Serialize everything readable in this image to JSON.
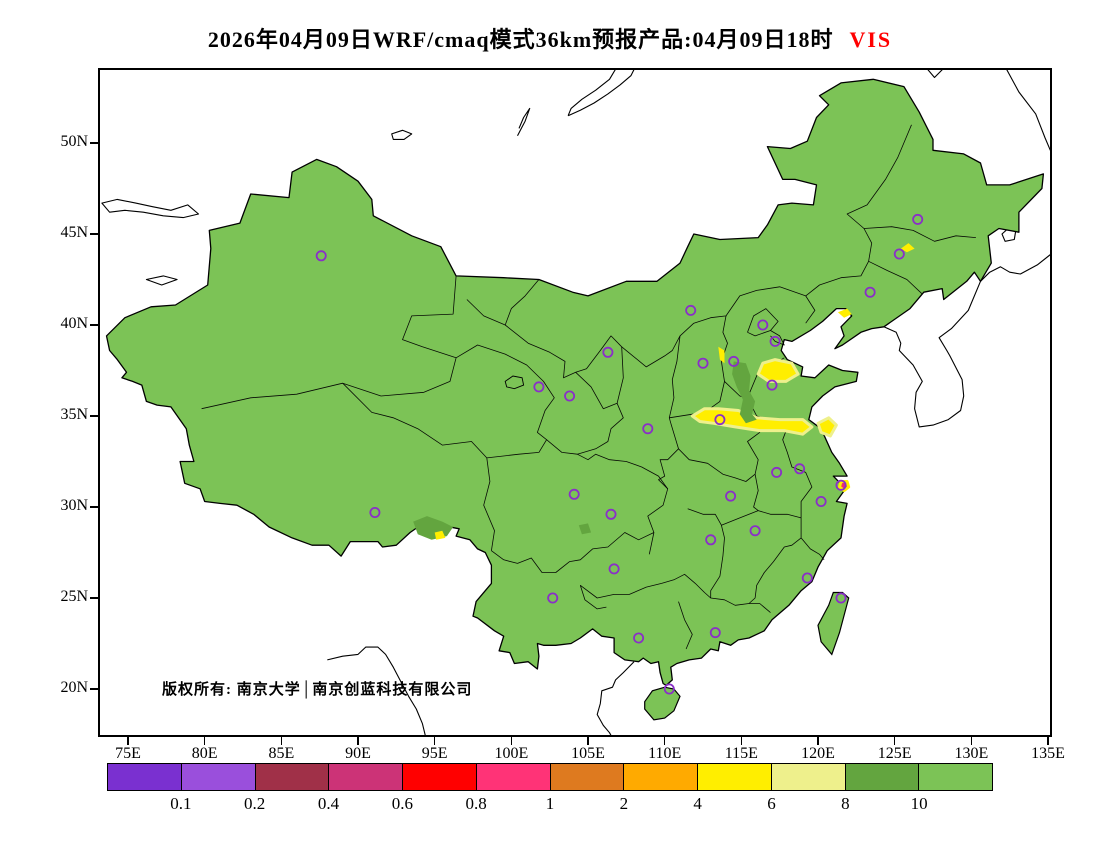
{
  "title": {
    "prefix": "2026年04月09日WRF/cmaq模式36km预报产品:04月09日18时",
    "variable": "VIS"
  },
  "copyright": "版权所有: 南京大学│南京创蓝科技有限公司",
  "axes": {
    "lat_tick_labels": [
      "50N",
      "45N",
      "40N",
      "35N",
      "30N",
      "25N",
      "20N"
    ],
    "lat_tick_values": [
      50,
      45,
      40,
      35,
      30,
      25,
      20
    ],
    "lon_tick_labels": [
      "75E",
      "80E",
      "85E",
      "90E",
      "95E",
      "100E",
      "105E",
      "110E",
      "115E",
      "120E",
      "125E",
      "130E",
      "135E"
    ],
    "lon_tick_values": [
      75,
      80,
      85,
      90,
      95,
      100,
      105,
      110,
      115,
      120,
      125,
      130,
      135
    ]
  },
  "colors": {
    "map_fill": "#7cc356",
    "marker": "#8a2fc8",
    "title_variable": "#ff0000",
    "line": "#000000"
  },
  "chart_data": {
    "type": "heatmap",
    "title": "2026年04月09日WRF/cmaq模式36km预报产品:04月09日18时 VIS",
    "variable": "VIS",
    "lon_range": [
      73.2,
      135.1
    ],
    "lat_range": [
      17.5,
      54.0
    ],
    "background_level": ">10",
    "colorbar": {
      "boundary_labels": [
        "0.1",
        "0.2",
        "0.4",
        "0.6",
        "0.8",
        "1",
        "2",
        "4",
        "6",
        "8",
        "10"
      ],
      "segment_colors": [
        "#7a30d0",
        "#9a4fdc",
        "#a03048",
        "#cc3377",
        "#ff0000",
        "#ff3377",
        "#de7a1f",
        "#ffaa00",
        "#ffee00",
        "#eef08c",
        "#63a53f",
        "#7cc356"
      ]
    },
    "city_markers_lonlat": [
      [
        87.6,
        43.8
      ],
      [
        111.7,
        40.8
      ],
      [
        126.5,
        45.8
      ],
      [
        125.3,
        43.9
      ],
      [
        123.4,
        41.8
      ],
      [
        116.4,
        40.0
      ],
      [
        117.2,
        39.1
      ],
      [
        114.5,
        38.0
      ],
      [
        112.5,
        37.9
      ],
      [
        117.0,
        36.7
      ],
      [
        106.3,
        38.5
      ],
      [
        101.8,
        36.6
      ],
      [
        103.8,
        36.1
      ],
      [
        113.6,
        34.8
      ],
      [
        108.9,
        34.3
      ],
      [
        118.8,
        32.1
      ],
      [
        121.5,
        31.2
      ],
      [
        120.2,
        30.3
      ],
      [
        117.3,
        31.9
      ],
      [
        114.3,
        30.6
      ],
      [
        104.1,
        30.7
      ],
      [
        106.5,
        29.6
      ],
      [
        91.1,
        29.7
      ],
      [
        113.0,
        28.2
      ],
      [
        115.9,
        28.7
      ],
      [
        106.7,
        26.6
      ],
      [
        102.7,
        25.0
      ],
      [
        119.3,
        26.1
      ],
      [
        121.5,
        25.0
      ],
      [
        113.3,
        23.1
      ],
      [
        108.3,
        22.8
      ],
      [
        110.3,
        20.0
      ]
    ],
    "patches": [
      {
        "level": "4-6",
        "color": "#ffee00",
        "stroke": "#eef08c",
        "ring": [
          [
            111.8,
            35.0
          ],
          [
            112.6,
            35.4
          ],
          [
            113.5,
            35.4
          ],
          [
            114.8,
            35.3
          ],
          [
            116.0,
            34.9
          ],
          [
            117.5,
            34.8
          ],
          [
            119.0,
            34.8
          ],
          [
            119.6,
            34.4
          ],
          [
            119.0,
            34.0
          ],
          [
            117.8,
            34.2
          ],
          [
            116.2,
            34.2
          ],
          [
            114.6,
            34.4
          ],
          [
            113.2,
            34.6
          ],
          [
            112.3,
            34.7
          ]
        ]
      },
      {
        "level": "4-6",
        "color": "#ffee00",
        "stroke": "#eef08c",
        "ring": [
          [
            116.1,
            37.3
          ],
          [
            116.4,
            37.9
          ],
          [
            117.2,
            38.1
          ],
          [
            118.3,
            37.9
          ],
          [
            118.7,
            37.3
          ],
          [
            117.9,
            36.9
          ],
          [
            116.8,
            36.9
          ]
        ]
      },
      {
        "level": "4-6",
        "color": "#ffee00",
        "stroke": "#eef08c",
        "ring": [
          [
            120.0,
            34.6
          ],
          [
            120.7,
            34.9
          ],
          [
            121.2,
            34.5
          ],
          [
            120.8,
            33.9
          ],
          [
            120.2,
            34.1
          ]
        ]
      },
      {
        "level": "8-10",
        "color": "#63a53f",
        "ring": [
          [
            114.5,
            38.0
          ],
          [
            115.3,
            37.9
          ],
          [
            115.6,
            37.2
          ],
          [
            115.5,
            36.4
          ],
          [
            115.9,
            35.8
          ],
          [
            115.7,
            35.1
          ],
          [
            116.0,
            34.8
          ],
          [
            115.3,
            34.6
          ],
          [
            114.9,
            35.1
          ],
          [
            115.1,
            35.9
          ],
          [
            114.7,
            36.6
          ],
          [
            114.4,
            37.3
          ]
        ]
      },
      {
        "level": "8-10",
        "color": "#63a53f",
        "ring": [
          [
            93.6,
            29.2
          ],
          [
            94.5,
            29.5
          ],
          [
            95.5,
            29.2
          ],
          [
            96.2,
            28.9
          ],
          [
            95.8,
            28.4
          ],
          [
            94.8,
            28.2
          ],
          [
            93.9,
            28.5
          ]
        ]
      },
      {
        "level": "4-6",
        "color": "#ffee00",
        "ring": [
          [
            113.5,
            38.8
          ],
          [
            113.9,
            38.6
          ],
          [
            113.9,
            37.9
          ],
          [
            113.6,
            38.1
          ]
        ]
      },
      {
        "level": "4-6",
        "color": "#ffee00",
        "ring": [
          [
            121.3,
            40.7
          ],
          [
            121.9,
            40.9
          ],
          [
            122.2,
            40.6
          ],
          [
            121.7,
            40.4
          ]
        ]
      },
      {
        "level": "4-6",
        "color": "#ffee00",
        "ring": [
          [
            125.4,
            44.2
          ],
          [
            125.9,
            44.5
          ],
          [
            126.3,
            44.2
          ],
          [
            125.8,
            44.0
          ]
        ]
      },
      {
        "level": "4-6",
        "color": "#ffee00",
        "ring": [
          [
            95.0,
            28.6
          ],
          [
            95.5,
            28.7
          ],
          [
            95.7,
            28.3
          ],
          [
            95.1,
            28.2
          ]
        ]
      },
      {
        "level": "8-10",
        "color": "#63a53f",
        "ring": [
          [
            104.4,
            29.0
          ],
          [
            105.0,
            29.1
          ],
          [
            105.2,
            28.6
          ],
          [
            104.6,
            28.5
          ]
        ]
      },
      {
        "level": "0.8-1",
        "color": "#ee2d6d",
        "stroke": "#ffee00",
        "ring": [
          [
            121.5,
            31.4
          ],
          [
            121.9,
            31.4
          ],
          [
            122.0,
            31.1
          ],
          [
            121.7,
            30.9
          ],
          [
            121.4,
            31.1
          ]
        ]
      }
    ]
  }
}
